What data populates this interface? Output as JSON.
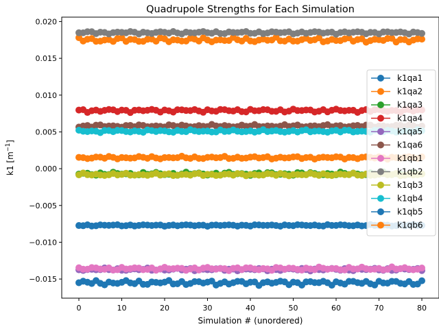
{
  "chart_data": {
    "type": "line",
    "title": "Quadrupole Strengths for Each Simulation",
    "xlabel": "Simulation # (unordered)",
    "ylabel_main": "k1 [m",
    "ylabel_sup": "−1",
    "ylabel_close": "]",
    "xlim": [
      -4,
      84
    ],
    "ylim": [
      -0.0176,
      0.0206
    ],
    "xticks": [
      0,
      10,
      20,
      30,
      40,
      50,
      60,
      70,
      80
    ],
    "xtick_labels": [
      "0",
      "10",
      "20",
      "30",
      "40",
      "50",
      "60",
      "70",
      "80"
    ],
    "yticks": [
      -0.015,
      -0.01,
      -0.005,
      0.0,
      0.005,
      0.01,
      0.015,
      0.02
    ],
    "ytick_labels": [
      "−0.015",
      "−0.010",
      "−0.005",
      "0.000",
      "0.005",
      "0.010",
      "0.015",
      "0.020"
    ],
    "x": {
      "start": 0,
      "end": 80,
      "step": 1
    },
    "legend_position": "center-right",
    "series": [
      {
        "name": "k1qa1",
        "color": "#1f77b4",
        "mean": -0.0155,
        "amp": 0.00035
      },
      {
        "name": "k1qa2",
        "color": "#ff7f0e",
        "mean": 0.0175,
        "amp": 0.00035
      },
      {
        "name": "k1qa3",
        "color": "#2ca02c",
        "mean": -0.0007,
        "amp": 0.00025
      },
      {
        "name": "k1qa4",
        "color": "#d62728",
        "mean": 0.0079,
        "amp": 0.00025
      },
      {
        "name": "k1qa5",
        "color": "#9467bd",
        "mean": -0.0137,
        "amp": 0.0002
      },
      {
        "name": "k1qa6",
        "color": "#8c564b",
        "mean": 0.0058,
        "amp": 0.0002
      },
      {
        "name": "k1qb1",
        "color": "#e377c2",
        "mean": -0.0136,
        "amp": 0.00025
      },
      {
        "name": "k1qb2",
        "color": "#7f7f7f",
        "mean": 0.0185,
        "amp": 0.0002
      },
      {
        "name": "k1qb3",
        "color": "#bcbd22",
        "mean": -0.0008,
        "amp": 0.0002
      },
      {
        "name": "k1qb4",
        "color": "#17becf",
        "mean": 0.0051,
        "amp": 0.0002
      },
      {
        "name": "k1qb5",
        "color": "#1f77b4",
        "mean": -0.0077,
        "amp": 0.00012
      },
      {
        "name": "k1qb6",
        "color": "#ff7f0e",
        "mean": 0.0015,
        "amp": 0.0002
      }
    ]
  }
}
